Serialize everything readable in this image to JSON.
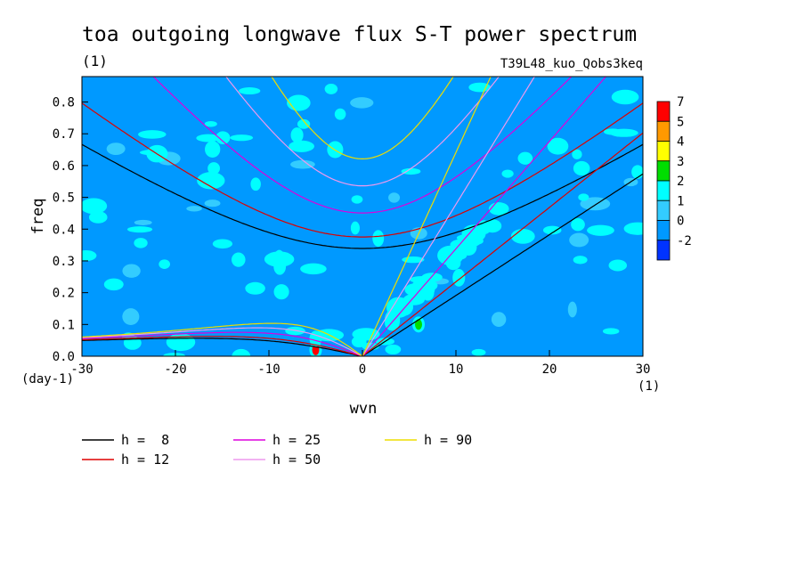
{
  "chart_data": {
    "type": "heatmap",
    "title": "toa outgoing longwave flux S-T power spectrum",
    "subtitle": "(1)",
    "run_label": "T39L48_kuo_Qobs3keq",
    "xlabel": "wvn",
    "ylabel": "freq",
    "x_unit": "(1)",
    "y_unit": "(day-1)",
    "xlim": [
      -30,
      30
    ],
    "ylim": [
      0,
      0.88
    ],
    "x_ticks": [
      -30,
      -20,
      -10,
      0,
      10,
      20,
      30
    ],
    "x_tick_labels": [
      "-30",
      "-20",
      "-10",
      "0",
      "10",
      "20",
      "30"
    ],
    "y_ticks": [
      0,
      0.1,
      0.2,
      0.3,
      0.4,
      0.5,
      0.6,
      0.7,
      0.8
    ],
    "y_tick_labels": [
      "0.0",
      "0.1",
      "0.2",
      "0.3",
      "0.4",
      "0.5",
      "0.6",
      "0.7",
      "0.8"
    ],
    "colorbar": {
      "labels": [
        "7",
        "5",
        "4",
        "3",
        "2",
        "1",
        "0",
        "-2"
      ],
      "colors": [
        "#ff0000",
        "#ff9900",
        "#ffff00",
        "#00dd00",
        "#00ffff",
        "#33ccff",
        "#0099ff",
        "#0033ff"
      ]
    },
    "background_color": "#0099ff",
    "hotspots": [
      {
        "x": -5,
        "y": 0.02,
        "level": "7"
      },
      {
        "x": -5,
        "y": 0.055,
        "level": "2"
      },
      {
        "x": 6,
        "y": 0.1,
        "level": "3"
      },
      {
        "x": 7,
        "y": 0.2,
        "level": "2"
      }
    ],
    "series": [
      {
        "name": "h =  8",
        "h": 8,
        "color": "#000000"
      },
      {
        "name": "h = 12",
        "h": 12,
        "color": "#dd0000"
      },
      {
        "name": "h = 25",
        "h": 25,
        "color": "#dd00dd"
      },
      {
        "name": "h = 50",
        "h": 50,
        "color": "#ee99ee"
      },
      {
        "name": "h = 90",
        "h": 90,
        "color": "#eedd00"
      }
    ]
  }
}
